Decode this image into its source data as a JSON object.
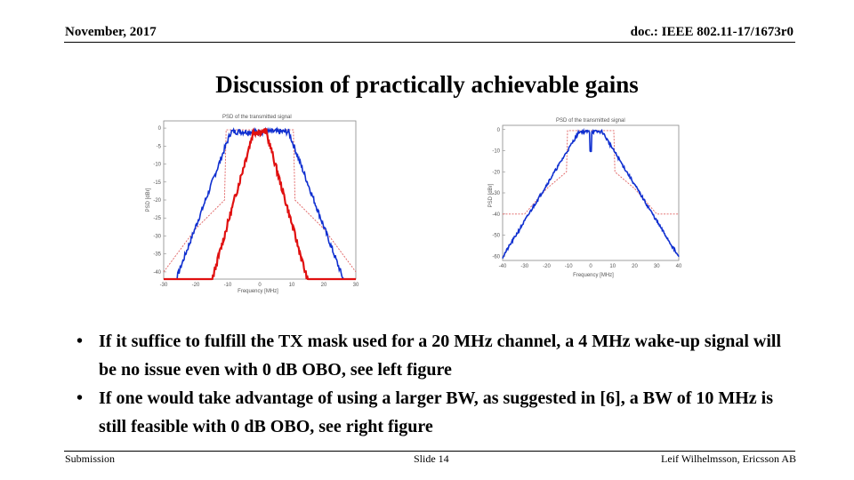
{
  "header": {
    "date": "November, 2017",
    "doc_id": "doc.: IEEE 802.11-17/1673r0"
  },
  "title": "Discussion of practically achievable gains",
  "figures": {
    "left": {
      "title": "PSD of the transmitted signal",
      "ylabel": "PSD [dBr]",
      "xlabel": "Frequency [MHz]",
      "yticks": [
        "0",
        "-5",
        "-10",
        "-15",
        "-20",
        "-25",
        "-30",
        "-35",
        "-40"
      ],
      "xticks": [
        "-30",
        "-20",
        "-10",
        "0",
        "10",
        "20",
        "30"
      ],
      "colors": {
        "narrow": "#e01010",
        "wide": "#1030d0",
        "mask": "#e06060"
      }
    },
    "right": {
      "title": "PSD of the transmitted signal",
      "ylabel": "PSD [dBr]",
      "xlabel": "Frequency [MHz]",
      "yticks": [
        "0",
        "-10",
        "-20",
        "-30",
        "-40",
        "-50",
        "-60"
      ],
      "xticks": [
        "-40",
        "-30",
        "-20",
        "-10",
        "0",
        "10",
        "20",
        "30",
        "40"
      ],
      "colors": {
        "signal": "#1030d0",
        "mask": "#e06060"
      }
    }
  },
  "bullets": [
    {
      "marker": "•",
      "text": "If it suffice to fulfill the TX mask used for a 20 MHz channel, a 4 MHz wake-up signal will be no issue even with 0 dB OBO, see left figure"
    },
    {
      "marker": "•",
      "text": "If one would take advantage of using a larger BW, as suggested in [6], a BW of 10 MHz is still feasible with 0 dB OBO, see right figure"
    }
  ],
  "footer": {
    "left": "Submission",
    "center": "Slide 14",
    "right": "Leif Wilhelmsson, Ericsson AB"
  }
}
